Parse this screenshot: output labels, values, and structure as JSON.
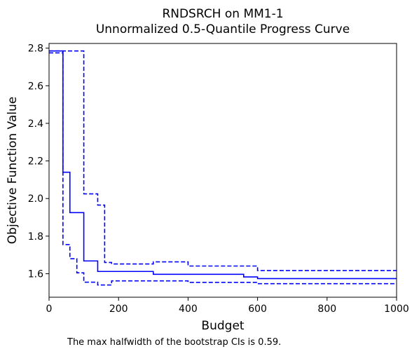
{
  "chart_data": {
    "type": "line",
    "title": "RNDSRCH on MM1-1",
    "subtitle": "Unnormalized 0.5-Quantile Progress Curve",
    "xlabel": "Budget",
    "ylabel": "Objective Function Value",
    "xlim": [
      0,
      1000
    ],
    "ylim": [
      1.475,
      2.825
    ],
    "xticks": [
      0,
      200,
      400,
      600,
      800,
      1000
    ],
    "yticks": [
      1.6,
      1.8,
      2.0,
      2.2,
      2.4,
      2.6,
      2.8
    ],
    "grid": false,
    "footnote": "The max halfwidth of the bootstrap CIs is 0.59.",
    "series": [
      {
        "role": "median",
        "style": "solid",
        "color": "#0000ff",
        "x": [
          0,
          40,
          40,
          60,
          60,
          100,
          100,
          140,
          140,
          300,
          300,
          560,
          560,
          600,
          600,
          1000
        ],
        "y": [
          2.785,
          2.785,
          2.14,
          2.14,
          1.925,
          1.925,
          1.668,
          1.668,
          1.612,
          1.612,
          1.597,
          1.597,
          1.583,
          1.583,
          1.574,
          1.574
        ]
      },
      {
        "role": "ci-upper",
        "style": "dashed",
        "color": "#0000ff",
        "x": [
          0,
          100,
          100,
          140,
          140,
          160,
          160,
          180,
          180,
          300,
          300,
          400,
          400,
          600,
          600,
          1000
        ],
        "y": [
          2.785,
          2.785,
          2.025,
          2.025,
          1.965,
          1.965,
          1.66,
          1.66,
          1.652,
          1.652,
          1.663,
          1.663,
          1.641,
          1.641,
          1.617,
          1.617
        ]
      },
      {
        "role": "ci-lower",
        "style": "dashed",
        "color": "#0000ff",
        "x": [
          0,
          40,
          40,
          60,
          60,
          80,
          80,
          100,
          100,
          140,
          140,
          180,
          180,
          400,
          400,
          600,
          600,
          1000
        ],
        "y": [
          2.775,
          2.775,
          1.755,
          1.755,
          1.68,
          1.68,
          1.605,
          1.605,
          1.555,
          1.555,
          1.54,
          1.54,
          1.562,
          1.562,
          1.554,
          1.554,
          1.547,
          1.547
        ]
      }
    ]
  }
}
